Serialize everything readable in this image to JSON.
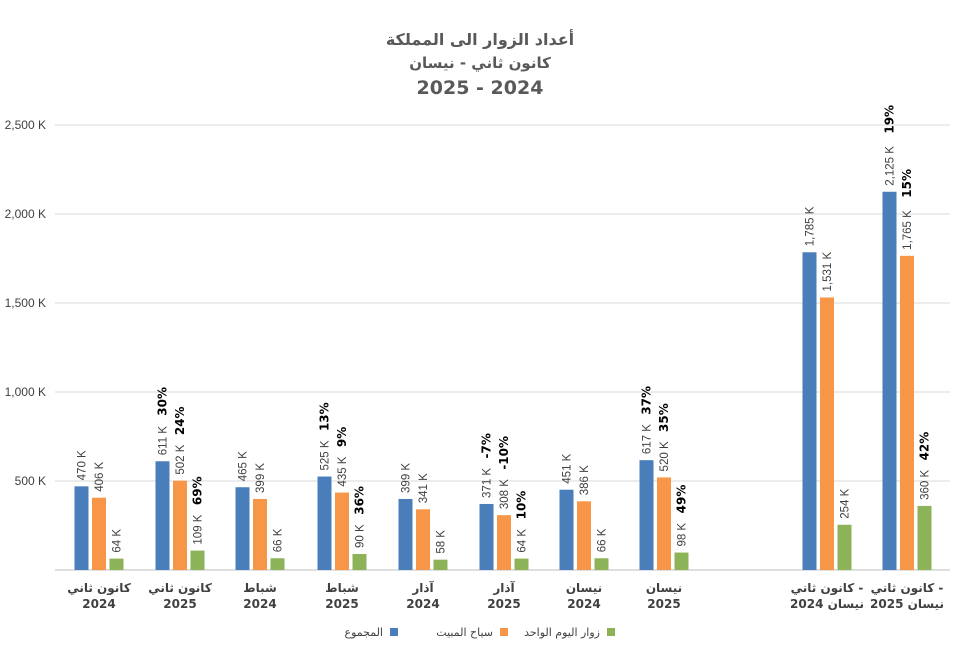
{
  "chart_data": {
    "type": "bar",
    "title_lines": [
      "أعداد الزوار الى المملكة",
      "كانون ثاني - نيسان",
      "2025 - 2024"
    ],
    "ylim": [
      0,
      2500
    ],
    "yticks": [
      500,
      1000,
      1500,
      2000,
      2500
    ],
    "ytick_labels": [
      "500 K",
      "1,000 K",
      "1,500 K",
      "2,000 K",
      "2,500 K"
    ],
    "grid": true,
    "legend_position": "bottom",
    "colors": [
      "#4a7ebb",
      "#f79646",
      "#8db358"
    ],
    "categories": [
      {
        "line1": "كانون ثاني",
        "line2": "2024",
        "group": "monthly"
      },
      {
        "line1": "كانون ثاني",
        "line2": "2025",
        "group": "monthly"
      },
      {
        "line1": "شباط",
        "line2": "2024",
        "group": "monthly"
      },
      {
        "line1": "شباط",
        "line2": "2025",
        "group": "monthly"
      },
      {
        "line1": "آذار",
        "line2": "2024",
        "group": "monthly"
      },
      {
        "line1": "آذار",
        "line2": "2025",
        "group": "monthly"
      },
      {
        "line1": "نيسان",
        "line2": "2024",
        "group": "monthly"
      },
      {
        "line1": "نيسان",
        "line2": "2025",
        "group": "monthly"
      },
      {
        "line1": "كانون ثاني -",
        "line2": "نيسان 2024",
        "group": "total"
      },
      {
        "line1": "كانون ثاني -",
        "line2": "نيسان 2025",
        "group": "total"
      }
    ],
    "series": [
      {
        "name": "المجموع",
        "values": [
          470,
          611,
          465,
          525,
          399,
          371,
          451,
          617,
          1785,
          2125
        ],
        "labels": [
          "470 K",
          "611 K",
          "465 K",
          "525 K",
          "399 K",
          "371 K",
          "451 K",
          "617 K",
          "1,785 K",
          "2,125 K"
        ],
        "changes": [
          null,
          "30%",
          null,
          "13%",
          null,
          "-7%",
          null,
          "37%",
          null,
          "19%"
        ]
      },
      {
        "name": "سياح المبيت",
        "values": [
          406,
          502,
          399,
          435,
          341,
          308,
          386,
          520,
          1531,
          1765
        ],
        "labels": [
          "406 K",
          "502 K",
          "399 K",
          "435 K",
          "341 K",
          "308 K",
          "386 K",
          "520 K",
          "1,531 K",
          "1,765 K"
        ],
        "changes": [
          null,
          "24%",
          null,
          "9%",
          null,
          "-10%",
          null,
          "35%",
          null,
          "15%"
        ]
      },
      {
        "name": "زوار اليوم الواحد",
        "values": [
          64,
          109,
          66,
          90,
          58,
          64,
          66,
          98,
          254,
          360
        ],
        "labels": [
          "64 K",
          "109 K",
          "66 K",
          "90 K",
          "58 K",
          "64 K",
          "66 K",
          "98 K",
          "254 K",
          "360 K"
        ],
        "changes": [
          null,
          "69%",
          null,
          "36%",
          null,
          "10%",
          null,
          "49%",
          null,
          "42%"
        ]
      }
    ]
  }
}
